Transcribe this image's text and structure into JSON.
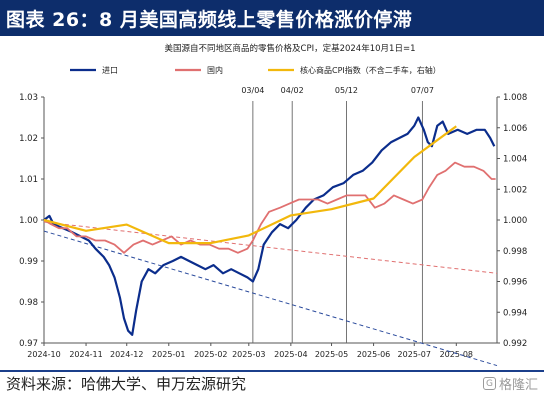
{
  "header": {
    "title": "图表 26：8 月美国高频线上零售价格涨价停滞"
  },
  "footer": {
    "source": "资料来源：哈佛大学、申万宏源研究",
    "watermark": "格隆汇"
  },
  "watermark_icon": "stock-logo-icon",
  "colors": {
    "header_bg": "#0d2d6b",
    "online": "#0b2d8c",
    "official": "#e07070",
    "cpi": "#f2b80c",
    "trend_online": "#2a4a9c",
    "trend_official": "#e07070",
    "marker": "#666666"
  },
  "chart_data": {
    "type": "line",
    "title": "美国源自不同地区商品的零售价格及CPI，定基2024年10月1日=1",
    "legend": [
      "进口",
      "国内",
      "核心商品CPI指数（不含二手车，右轴）"
    ],
    "legend_position": "top",
    "x_ticks": [
      "2024-10",
      "2024-11",
      "2024-12",
      "2025-01",
      "2025-02",
      "2025-03",
      "2025-04",
      "2025-05",
      "2025-06",
      "2025-07",
      "2025-08"
    ],
    "xlim": [
      "2024-10-01",
      "2025-08-31"
    ],
    "y_left": {
      "lim": [
        0.97,
        1.03
      ],
      "ticks": [
        "0.97",
        "0.98",
        "0.99",
        "1.00",
        "1.01",
        "1.02",
        "1.03"
      ]
    },
    "y_right": {
      "lim": [
        0.992,
        1.008
      ],
      "ticks": [
        "0.992",
        "0.994",
        "0.996",
        "0.998",
        "1.000",
        "1.002",
        "1.004",
        "1.006",
        "1.008"
      ]
    },
    "markers": [
      {
        "label": "03/04",
        "x": "2025-03-04"
      },
      {
        "label": "04/02",
        "x": "2025-04-02"
      },
      {
        "label": "05/12",
        "x": "2025-05-12"
      },
      {
        "label": "07/07",
        "x": "2025-07-07"
      }
    ],
    "series": [
      {
        "name": "进口",
        "axis": "left",
        "points": [
          [
            "2024-10-01",
            1.0
          ],
          [
            "2024-10-05",
            1.001
          ],
          [
            "2024-10-08",
            0.999
          ],
          [
            "2024-10-15",
            0.998
          ],
          [
            "2024-10-22",
            0.997
          ],
          [
            "2024-10-28",
            0.996
          ],
          [
            "2024-11-03",
            0.995
          ],
          [
            "2024-11-08",
            0.993
          ],
          [
            "2024-11-14",
            0.991
          ],
          [
            "2024-11-18",
            0.989
          ],
          [
            "2024-11-22",
            0.986
          ],
          [
            "2024-11-26",
            0.981
          ],
          [
            "2024-11-29",
            0.976
          ],
          [
            "2024-12-02",
            0.973
          ],
          [
            "2024-12-05",
            0.972
          ],
          [
            "2024-12-08",
            0.978
          ],
          [
            "2024-12-12",
            0.985
          ],
          [
            "2024-12-17",
            0.988
          ],
          [
            "2024-12-22",
            0.987
          ],
          [
            "2024-12-28",
            0.989
          ],
          [
            "2025-01-04",
            0.99
          ],
          [
            "2025-01-10",
            0.991
          ],
          [
            "2025-01-16",
            0.99
          ],
          [
            "2025-01-22",
            0.989
          ],
          [
            "2025-01-28",
            0.988
          ],
          [
            "2025-02-03",
            0.989
          ],
          [
            "2025-02-10",
            0.987
          ],
          [
            "2025-02-16",
            0.988
          ],
          [
            "2025-02-22",
            0.987
          ],
          [
            "2025-02-28",
            0.986
          ],
          [
            "2025-03-04",
            0.985
          ],
          [
            "2025-03-08",
            0.988
          ],
          [
            "2025-03-12",
            0.994
          ],
          [
            "2025-03-18",
            0.997
          ],
          [
            "2025-03-24",
            0.999
          ],
          [
            "2025-03-30",
            0.998
          ],
          [
            "2025-04-05",
            1.0
          ],
          [
            "2025-04-12",
            1.003
          ],
          [
            "2025-04-18",
            1.005
          ],
          [
            "2025-04-25",
            1.006
          ],
          [
            "2025-05-02",
            1.008
          ],
          [
            "2025-05-10",
            1.009
          ],
          [
            "2025-05-17",
            1.011
          ],
          [
            "2025-05-24",
            1.012
          ],
          [
            "2025-05-31",
            1.014
          ],
          [
            "2025-06-07",
            1.017
          ],
          [
            "2025-06-14",
            1.019
          ],
          [
            "2025-06-20",
            1.02
          ],
          [
            "2025-06-26",
            1.021
          ],
          [
            "2025-07-01",
            1.023
          ],
          [
            "2025-07-04",
            1.025
          ],
          [
            "2025-07-08",
            1.022
          ],
          [
            "2025-07-11",
            1.019
          ],
          [
            "2025-07-14",
            1.018
          ],
          [
            "2025-07-18",
            1.023
          ],
          [
            "2025-07-22",
            1.024
          ],
          [
            "2025-07-26",
            1.021
          ],
          [
            "2025-08-02",
            1.022
          ],
          [
            "2025-08-09",
            1.021
          ],
          [
            "2025-08-16",
            1.022
          ],
          [
            "2025-08-22",
            1.022
          ],
          [
            "2025-08-26",
            1.02
          ],
          [
            "2025-08-29",
            1.018
          ]
        ]
      },
      {
        "name": "国内",
        "axis": "left",
        "points": [
          [
            "2024-10-01",
            1.0
          ],
          [
            "2024-10-06",
            0.999
          ],
          [
            "2024-10-12",
            0.998
          ],
          [
            "2024-10-18",
            0.998
          ],
          [
            "2024-10-25",
            0.996
          ],
          [
            "2024-11-01",
            0.996
          ],
          [
            "2024-11-08",
            0.995
          ],
          [
            "2024-11-15",
            0.995
          ],
          [
            "2024-11-22",
            0.994
          ],
          [
            "2024-11-29",
            0.992
          ],
          [
            "2024-12-06",
            0.994
          ],
          [
            "2024-12-13",
            0.995
          ],
          [
            "2024-12-20",
            0.994
          ],
          [
            "2024-12-27",
            0.995
          ],
          [
            "2025-01-03",
            0.996
          ],
          [
            "2025-01-10",
            0.994
          ],
          [
            "2025-01-17",
            0.995
          ],
          [
            "2025-01-24",
            0.994
          ],
          [
            "2025-01-31",
            0.994
          ],
          [
            "2025-02-07",
            0.993
          ],
          [
            "2025-02-14",
            0.993
          ],
          [
            "2025-02-21",
            0.992
          ],
          [
            "2025-02-28",
            0.993
          ],
          [
            "2025-03-04",
            0.995
          ],
          [
            "2025-03-10",
            0.999
          ],
          [
            "2025-03-16",
            1.002
          ],
          [
            "2025-03-24",
            1.003
          ],
          [
            "2025-03-31",
            1.004
          ],
          [
            "2025-04-07",
            1.005
          ],
          [
            "2025-04-14",
            1.005
          ],
          [
            "2025-04-21",
            1.005
          ],
          [
            "2025-04-28",
            1.004
          ],
          [
            "2025-05-05",
            1.005
          ],
          [
            "2025-05-12",
            1.006
          ],
          [
            "2025-05-19",
            1.006
          ],
          [
            "2025-05-26",
            1.006
          ],
          [
            "2025-06-02",
            1.003
          ],
          [
            "2025-06-09",
            1.004
          ],
          [
            "2025-06-16",
            1.006
          ],
          [
            "2025-06-23",
            1.005
          ],
          [
            "2025-06-30",
            1.004
          ],
          [
            "2025-07-07",
            1.005
          ],
          [
            "2025-07-12",
            1.008
          ],
          [
            "2025-07-18",
            1.011
          ],
          [
            "2025-07-24",
            1.012
          ],
          [
            "2025-07-31",
            1.014
          ],
          [
            "2025-08-07",
            1.013
          ],
          [
            "2025-08-14",
            1.013
          ],
          [
            "2025-08-21",
            1.012
          ],
          [
            "2025-08-27",
            1.01
          ],
          [
            "2025-08-30",
            1.01
          ]
        ]
      },
      {
        "name": "核心商品CPI指数（不含二手车，右轴）",
        "axis": "right",
        "points": [
          [
            "2024-10-01",
            1.0
          ],
          [
            "2024-11-01",
            0.9993
          ],
          [
            "2024-12-01",
            0.9997
          ],
          [
            "2025-01-01",
            0.9985
          ],
          [
            "2025-02-01",
            0.9985
          ],
          [
            "2025-03-01",
            0.999
          ],
          [
            "2025-04-01",
            1.0003
          ],
          [
            "2025-05-01",
            1.0007
          ],
          [
            "2025-06-01",
            1.0014
          ],
          [
            "2025-07-01",
            1.0041
          ],
          [
            "2025-08-01",
            1.0061
          ]
        ]
      }
    ],
    "trend_lines": [
      {
        "name": "进口趋势",
        "axis": "left",
        "points": [
          [
            "2024-10-01",
            0.9973
          ],
          [
            "2025-08-31",
            0.9645
          ]
        ]
      },
      {
        "name": "国内趋势",
        "axis": "left",
        "points": [
          [
            "2024-10-01",
            0.9995
          ],
          [
            "2025-08-31",
            0.987
          ]
        ]
      }
    ]
  }
}
